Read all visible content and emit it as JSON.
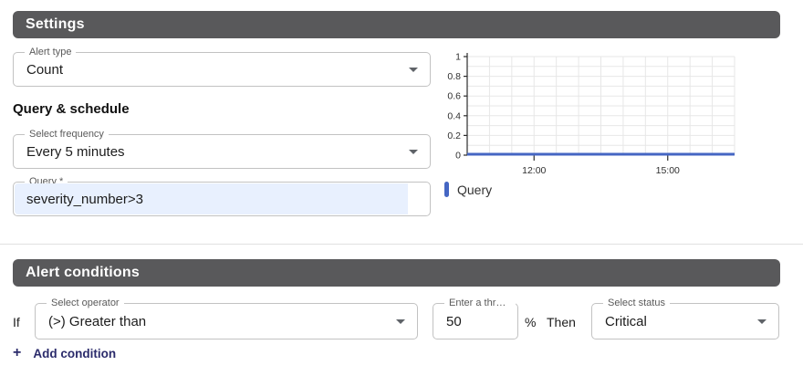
{
  "settings": {
    "header": "Settings",
    "alert_type": {
      "label": "Alert type",
      "value": "Count"
    }
  },
  "query_schedule": {
    "heading": "Query & schedule",
    "frequency": {
      "label": "Select frequency",
      "value": "Every 5 minutes"
    },
    "query": {
      "label": "Query *",
      "value": "severity_number>3"
    }
  },
  "chart_data": {
    "type": "line",
    "title": "",
    "x_axis": {
      "domain_hours": [
        10.5,
        16.5
      ],
      "grid_interval_hours": 0.5,
      "tick_hours": [
        12,
        15
      ],
      "tick_labels": [
        "12:00",
        "15:00"
      ]
    },
    "y_axis": {
      "range": [
        0,
        1
      ],
      "ticks": [
        0,
        0.2,
        0.4,
        0.6,
        0.8,
        1
      ],
      "grid_interval": 0.1
    },
    "grid": true,
    "legend_position": "bottom-left",
    "series": [
      {
        "name": "Query",
        "color": "#4566c3",
        "points": [
          [
            10.5,
            0
          ],
          [
            16.5,
            0
          ]
        ]
      }
    ],
    "legend": [
      {
        "label": "Query",
        "color": "#4566c3"
      }
    ]
  },
  "conditions": {
    "header": "Alert conditions",
    "if_label": "If",
    "operator": {
      "label": "Select operator",
      "value": "(>) Greater than"
    },
    "threshold": {
      "label": "Enter a thresh...",
      "value": "50"
    },
    "percent_label": "%",
    "then_label": "Then",
    "status": {
      "label": "Select status",
      "value": "Critical"
    },
    "plus_icon": "+",
    "add_condition_label": "Add condition"
  },
  "colors": {
    "section_bar": "#59595b",
    "series_blue": "#4566c3",
    "query_field_bg": "#e8f0fe",
    "grid_line": "#e7e7e7",
    "axis_line": "#2b2b2b",
    "add_condition_text": "#2b2b6b"
  }
}
